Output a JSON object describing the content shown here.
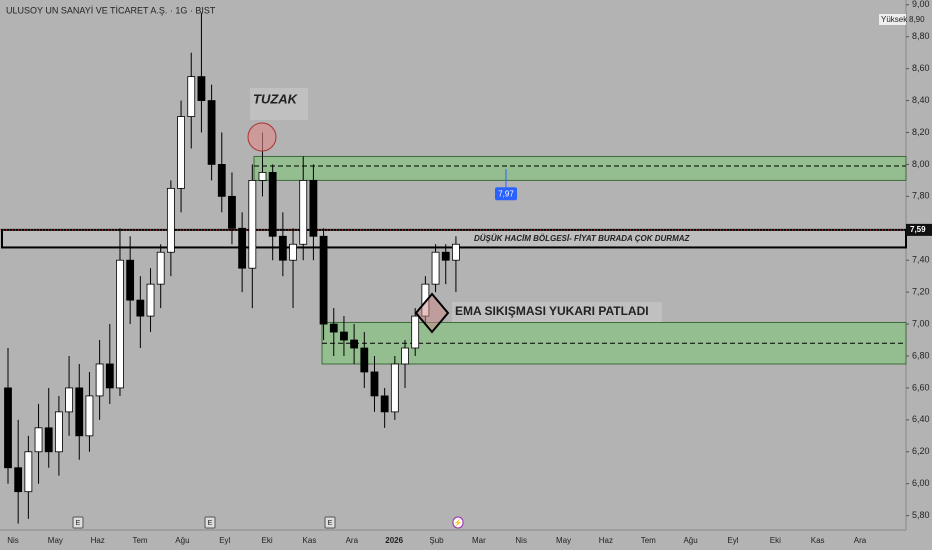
{
  "chart_data": {
    "type": "candlestick",
    "title": "ULUSOY UN SANAYİ VE TİCARET A.Ş. · 1G · BIST",
    "high_label": "Yüksek",
    "high_value": {
      "value": 8.9,
      "label": "8,90"
    },
    "last_price": {
      "value": 7.59,
      "label": "7,59"
    },
    "marker_price": {
      "value": 7.97,
      "label": "7,97"
    },
    "annotations": [
      "TUZAK",
      "DÜŞÜK HACİM BÖLGESİ- FİYAT BURADA ÇOK DURMAZ",
      "EMA SIKIŞMASI YUKARI PATLADI"
    ],
    "events": [
      "E",
      "E",
      "E",
      "⚡"
    ],
    "xticks": [
      "Nis",
      "May",
      "Haz",
      "Tem",
      "Ağu",
      "Eyl",
      "Eki",
      "Kas",
      "Ara",
      "2026",
      "Şub",
      "Mar",
      "Nis",
      "May",
      "Haz",
      "Tem",
      "Ağu",
      "Eyl",
      "Eki",
      "Kas",
      "Ara"
    ],
    "ylim": [
      5.71,
      9.03
    ],
    "yticks": [
      {
        "value": 5.8,
        "label": "5,80"
      },
      {
        "value": 6.0,
        "label": "6,00"
      },
      {
        "value": 6.2,
        "label": "6,20"
      },
      {
        "value": 6.4,
        "label": "6,40"
      },
      {
        "value": 6.6,
        "label": "6,60"
      },
      {
        "value": 6.8,
        "label": "6,80"
      },
      {
        "value": 7.0,
        "label": "7,00"
      },
      {
        "value": 7.2,
        "label": "7,20"
      },
      {
        "value": 7.4,
        "label": "7,40"
      },
      {
        "value": 7.6,
        "label": "7,60"
      },
      {
        "value": 7.8,
        "label": "7,80"
      },
      {
        "value": 8.0,
        "label": "8,00"
      },
      {
        "value": 8.2,
        "label": "8,20"
      },
      {
        "value": 8.4,
        "label": "8,40"
      },
      {
        "value": 8.6,
        "label": "8,60"
      },
      {
        "value": 8.8,
        "label": "8,80"
      },
      {
        "value": 9.0,
        "label": "9,00"
      }
    ],
    "zones": [
      {
        "low": 7.9,
        "high": 8.05,
        "mid": 7.99,
        "color": "#8fbf8a"
      },
      {
        "low": 6.75,
        "high": 7.01,
        "mid": 6.88,
        "color": "#8fbf8a"
      },
      {
        "low": 7.48,
        "high": 7.59,
        "color": "#c4c4c4"
      }
    ],
    "up_color": "#ffffff",
    "down_color": "#000000",
    "candles": [
      [
        6.6,
        6.85,
        6.0,
        6.1
      ],
      [
        6.1,
        6.4,
        5.75,
        5.95
      ],
      [
        5.95,
        6.3,
        5.78,
        6.2
      ],
      [
        6.2,
        6.5,
        6.0,
        6.35
      ],
      [
        6.35,
        6.6,
        6.1,
        6.2
      ],
      [
        6.2,
        6.55,
        6.05,
        6.45
      ],
      [
        6.45,
        6.8,
        6.3,
        6.6
      ],
      [
        6.6,
        6.75,
        6.15,
        6.3
      ],
      [
        6.3,
        6.7,
        6.2,
        6.55
      ],
      [
        6.55,
        6.9,
        6.4,
        6.75
      ],
      [
        6.75,
        7.0,
        6.5,
        6.6
      ],
      [
        6.6,
        7.6,
        6.55,
        7.4
      ],
      [
        7.4,
        7.55,
        7.0,
        7.15
      ],
      [
        7.15,
        7.3,
        6.85,
        7.05
      ],
      [
        7.05,
        7.35,
        6.95,
        7.25
      ],
      [
        7.25,
        7.5,
        7.1,
        7.45
      ],
      [
        7.45,
        7.9,
        7.3,
        7.85
      ],
      [
        7.85,
        8.4,
        7.7,
        8.3
      ],
      [
        8.3,
        8.7,
        8.1,
        8.55
      ],
      [
        8.55,
        8.95,
        8.2,
        8.4
      ],
      [
        8.4,
        8.5,
        7.9,
        8.0
      ],
      [
        8.0,
        8.2,
        7.7,
        7.8
      ],
      [
        7.8,
        7.95,
        7.5,
        7.6
      ],
      [
        7.6,
        7.7,
        7.2,
        7.35
      ],
      [
        7.35,
        8.0,
        7.1,
        7.9
      ],
      [
        7.9,
        8.2,
        7.8,
        7.95
      ],
      [
        7.95,
        8.0,
        7.4,
        7.55
      ],
      [
        7.55,
        7.7,
        7.3,
        7.4
      ],
      [
        7.4,
        7.6,
        7.1,
        7.5
      ],
      [
        7.5,
        8.05,
        7.4,
        7.9
      ],
      [
        7.9,
        8.0,
        7.4,
        7.55
      ],
      [
        7.55,
        7.6,
        6.9,
        7.0
      ],
      [
        7.0,
        7.1,
        6.8,
        6.95
      ],
      [
        6.95,
        7.05,
        6.8,
        6.9
      ],
      [
        6.9,
        7.0,
        6.75,
        6.85
      ],
      [
        6.85,
        6.95,
        6.6,
        6.7
      ],
      [
        6.7,
        6.8,
        6.45,
        6.55
      ],
      [
        6.55,
        6.6,
        6.35,
        6.45
      ],
      [
        6.45,
        6.8,
        6.4,
        6.75
      ],
      [
        6.75,
        6.9,
        6.6,
        6.85
      ],
      [
        6.85,
        7.1,
        6.8,
        7.05
      ],
      [
        7.05,
        7.3,
        7.0,
        7.25
      ],
      [
        7.25,
        7.5,
        7.2,
        7.45
      ],
      [
        7.45,
        7.5,
        7.25,
        7.4
      ],
      [
        7.4,
        7.55,
        7.2,
        7.5
      ]
    ]
  }
}
